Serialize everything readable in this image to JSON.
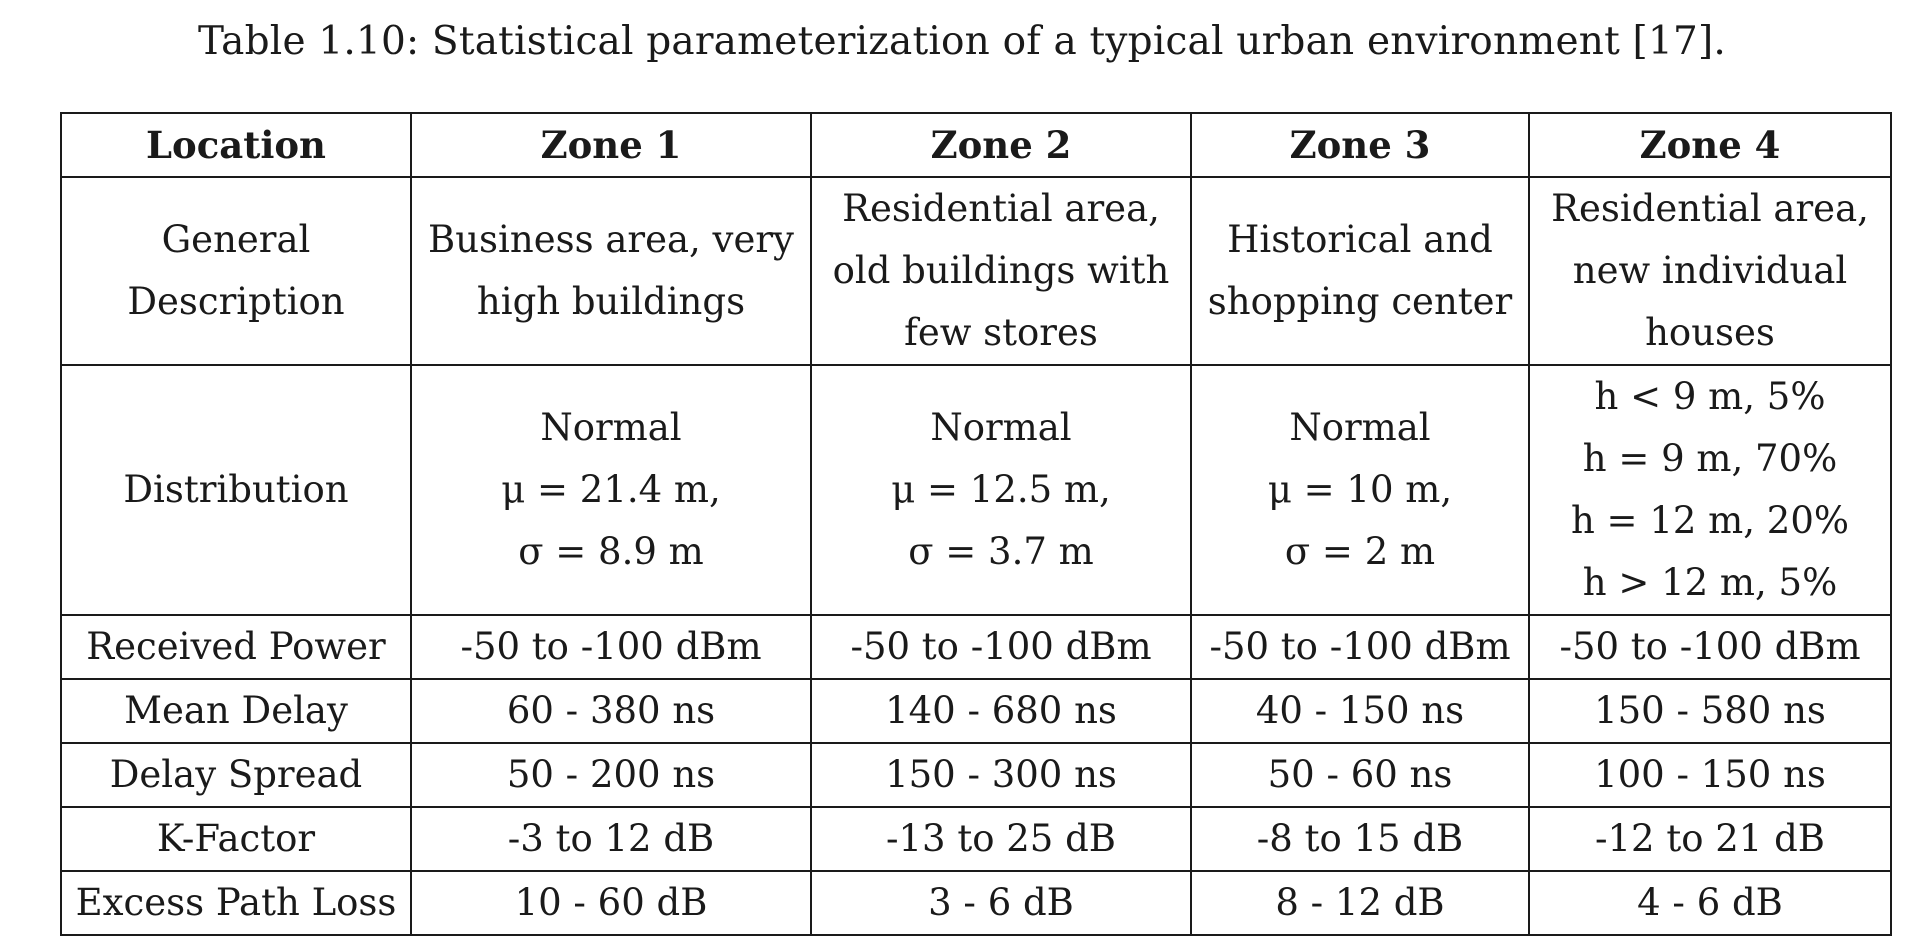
{
  "caption": "Table 1.10: Statistical parameterization of a typical urban environment [17].",
  "columns": [
    "Location",
    "Zone 1",
    "Zone 2",
    "Zone 3",
    "Zone 4"
  ],
  "rows": [
    {
      "label": [
        "General",
        "Description"
      ],
      "cells": [
        [
          "Business area, very",
          "high buildings"
        ],
        [
          "Residential area,",
          "old buildings with",
          "few stores"
        ],
        [
          "Historical and",
          "shopping center"
        ],
        [
          "Residential area,",
          "new individual",
          "houses"
        ]
      ]
    },
    {
      "label": [
        "Distribution"
      ],
      "cells": [
        [
          "Normal",
          "μ = 21.4 m,",
          "σ = 8.9 m"
        ],
        [
          "Normal",
          "μ = 12.5 m,",
          "σ = 3.7 m"
        ],
        [
          "Normal",
          "μ = 10 m,",
          "σ = 2 m"
        ],
        [
          "h < 9 m, 5%",
          "h = 9 m, 70%",
          "h = 12 m, 20%",
          "h > 12 m, 5%"
        ]
      ]
    },
    {
      "label": [
        "Received Power"
      ],
      "cells": [
        [
          "-50 to -100 dBm"
        ],
        [
          "-50 to -100 dBm"
        ],
        [
          "-50 to -100 dBm"
        ],
        [
          "-50 to -100 dBm"
        ]
      ]
    },
    {
      "label": [
        "Mean Delay"
      ],
      "cells": [
        [
          "60 - 380 ns"
        ],
        [
          "140 - 680 ns"
        ],
        [
          "40 - 150 ns"
        ],
        [
          "150 - 580 ns"
        ]
      ]
    },
    {
      "label": [
        "Delay Spread"
      ],
      "cells": [
        [
          "50 - 200 ns"
        ],
        [
          "150 - 300 ns"
        ],
        [
          "50 - 60 ns"
        ],
        [
          "100 - 150 ns"
        ]
      ]
    },
    {
      "label": [
        "K-Factor"
      ],
      "cells": [
        [
          "-3 to 12 dB"
        ],
        [
          "-13 to 25 dB"
        ],
        [
          "-8 to 15 dB"
        ],
        [
          "-12 to 21 dB"
        ]
      ]
    },
    {
      "label": [
        "Excess Path Loss"
      ],
      "cells": [
        [
          "10 - 60 dB"
        ],
        [
          "3 - 6 dB"
        ],
        [
          "8 - 12 dB"
        ],
        [
          "4 - 6 dB"
        ]
      ]
    }
  ]
}
